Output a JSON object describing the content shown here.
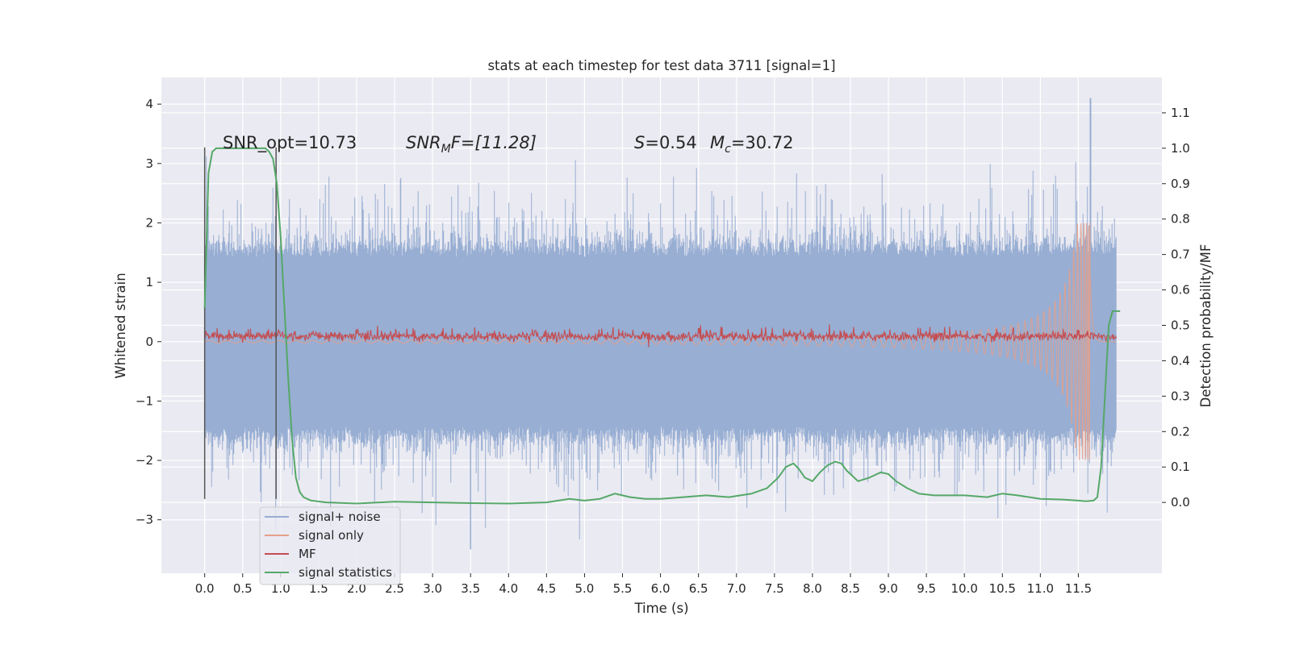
{
  "chart_data": {
    "type": "line",
    "title": "stats at each timestep for test data 3711 [signal=1]",
    "xlabel": "Time (s)",
    "ylabel": "Whitened strain",
    "ylabel_right": "Detection probability/MF",
    "xlim": [
      -0.57,
      12.6
    ],
    "ylim": [
      -3.9,
      4.45
    ],
    "ylim_right": [
      -0.2,
      1.2
    ],
    "x_ticks": [
      0.0,
      0.5,
      1.0,
      1.5,
      2.0,
      2.5,
      3.0,
      3.5,
      4.0,
      4.5,
      5.0,
      5.5,
      6.0,
      6.5,
      7.0,
      7.5,
      8.0,
      8.5,
      9.0,
      9.5,
      10.0,
      10.5,
      11.0,
      11.5
    ],
    "x_tick_labels": [
      "0.0",
      "0.5",
      "1.0",
      "1.5",
      "2.0",
      "2.5",
      "3.0",
      "3.5",
      "4.0",
      "4.5",
      "5.0",
      "5.5",
      "6.0",
      "6.5",
      "7.0",
      "7.5",
      "8.0",
      "8.5",
      "9.0",
      "9.5",
      "10.0",
      "10.5",
      "11.0",
      "11.5"
    ],
    "y_ticks": [
      -3,
      -2,
      -1,
      0,
      1,
      2,
      3,
      4
    ],
    "y_tick_labels": [
      "−3",
      "−2",
      "−1",
      "0",
      "1",
      "2",
      "3",
      "4"
    ],
    "y_ticks_right": [
      0.0,
      0.1,
      0.2,
      0.3,
      0.4,
      0.5,
      0.6,
      0.7,
      0.8,
      0.9,
      1.0,
      1.1
    ],
    "y_tick_labels_right": [
      "0.0",
      "0.1",
      "0.2",
      "0.3",
      "0.4",
      "0.5",
      "0.6",
      "0.7",
      "0.8",
      "0.9",
      "1.0",
      "1.1"
    ],
    "grid": true,
    "legend_position": "lower-left",
    "annotations": {
      "snr_opt": "SNR_opt=10.73",
      "snr_mf_main": "SNR",
      "snr_mf_sub": "M",
      "snr_mf_rest": "F=[11.28]",
      "s_sym": "S",
      "s_val": "=0.54",
      "mc_sym": "M",
      "mc_sub": "c",
      "mc_val": "=30.72"
    },
    "markers": {
      "vlines_x": [
        0.0,
        0.94
      ],
      "vline_ymin": -2.65,
      "vline_ymax": 3.27
    },
    "series": [
      {
        "name": "signal+ noise",
        "axis": "left",
        "color": "#98aed3",
        "x_range": [
          0.0,
          12.0
        ],
        "envelope_typical": [
          -1.5,
          1.5
        ],
        "peak_max": [
          11.66,
          4.1
        ],
        "peak_min": [
          3.5,
          -3.5
        ]
      },
      {
        "name": "signal only",
        "axis": "left",
        "color": "#e6a08a",
        "x_range": [
          0.0,
          12.0
        ],
        "amplitude_start": 0.02,
        "amplitude_peak": [
          11.66,
          2.0
        ]
      },
      {
        "name": "MF",
        "axis": "left",
        "color": "#c44e52",
        "x_range": [
          0.0,
          12.0
        ],
        "band": [
          0.0,
          0.25
        ]
      },
      {
        "name": "signal statistics",
        "axis": "right",
        "color": "#55a868",
        "x": [
          0.0,
          0.05,
          0.1,
          0.15,
          0.3,
          0.5,
          0.7,
          0.8,
          0.85,
          0.9,
          0.95,
          1.0,
          1.05,
          1.1,
          1.15,
          1.2,
          1.25,
          1.3,
          1.4,
          1.6,
          2.0,
          2.5,
          3.0,
          3.5,
          4.0,
          4.5,
          4.8,
          5.0,
          5.2,
          5.4,
          5.6,
          5.8,
          6.0,
          6.3,
          6.6,
          6.9,
          7.2,
          7.4,
          7.55,
          7.65,
          7.75,
          7.82,
          7.9,
          8.0,
          8.1,
          8.2,
          8.3,
          8.38,
          8.45,
          8.6,
          8.75,
          8.9,
          9.0,
          9.1,
          9.25,
          9.4,
          9.6,
          9.8,
          10.0,
          10.3,
          10.5,
          10.7,
          11.0,
          11.3,
          11.5,
          11.6,
          11.7,
          11.75,
          11.8,
          11.85,
          11.9,
          11.95,
          12.0,
          12.05
        ],
        "y": [
          0.55,
          0.93,
          0.99,
          1.0,
          1.0,
          1.0,
          1.0,
          1.0,
          0.99,
          0.97,
          0.9,
          0.75,
          0.55,
          0.35,
          0.18,
          0.07,
          0.03,
          0.015,
          0.005,
          0.0,
          -0.003,
          0.002,
          0.0,
          -0.002,
          -0.003,
          0.0,
          0.01,
          0.005,
          0.01,
          0.025,
          0.015,
          0.01,
          0.01,
          0.015,
          0.02,
          0.015,
          0.025,
          0.04,
          0.07,
          0.1,
          0.11,
          0.095,
          0.07,
          0.06,
          0.085,
          0.105,
          0.115,
          0.11,
          0.09,
          0.06,
          0.07,
          0.085,
          0.08,
          0.06,
          0.04,
          0.025,
          0.02,
          0.02,
          0.02,
          0.015,
          0.025,
          0.02,
          0.01,
          0.008,
          0.005,
          0.003,
          0.005,
          0.015,
          0.1,
          0.3,
          0.5,
          0.54,
          0.54,
          0.54
        ]
      }
    ]
  }
}
